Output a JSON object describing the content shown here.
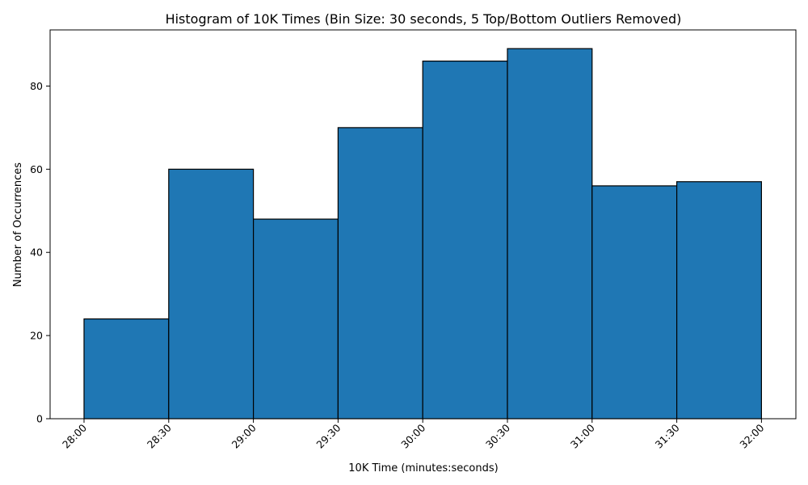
{
  "chart_data": {
    "type": "bar",
    "title": "Histogram of 10K Times (Bin Size: 30 seconds, 5 Top/Bottom Outliers Removed)",
    "xlabel": "10K Time (minutes:seconds)",
    "ylabel": "Number of Occurrences",
    "bin_edges": [
      "28:00",
      "28:30",
      "29:00",
      "29:30",
      "30:00",
      "30:30",
      "31:00",
      "31:30",
      "32:00"
    ],
    "counts": [
      24,
      60,
      48,
      70,
      86,
      89,
      56,
      57
    ],
    "y_ticks": [
      0,
      20,
      40,
      60,
      80
    ],
    "ylim": [
      0,
      93.5
    ],
    "bar_color": "#1f77b4",
    "edge_color": "#000000",
    "grid": false
  }
}
